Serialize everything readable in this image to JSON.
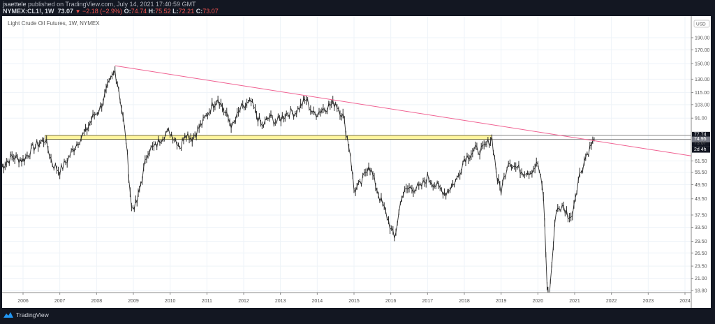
{
  "header": {
    "author": "jsaettele",
    "published_text": "published on TradingView.com, July 14, 2021 17:40:59 GMT",
    "symbol": "NYMEX:CL1!, 1W",
    "last_price": "73.07",
    "change_icon": "down-triangle-icon",
    "change": "−2.18 (−2.9%)",
    "open_label": "O:",
    "open": "74.74",
    "high_label": "H:",
    "high": "75.52",
    "low_label": "L:",
    "low": "72.21",
    "close_label": "C:",
    "close": "73.07"
  },
  "chart": {
    "legend_title": "Light Crude Oil Futures, 1W, NYMEX",
    "currency_label": "USD",
    "price_badges": {
      "upper": "77.74",
      "current": "74.95",
      "hidden": "73.07",
      "countdown": "2d 4h"
    }
  },
  "footer": {
    "brand": "TradingView",
    "brand_icon": "tradingview-cloud-icon"
  },
  "colors": {
    "background_dark": "#131722",
    "plot_background": "#ffffff",
    "trendline": "#f06292",
    "zone_fill": "#fff59d",
    "zone_border": "#7a7346",
    "candles": "#2a2a2a",
    "down_change": "#ef5350",
    "grid": "#eef3f8"
  },
  "chart_data": {
    "type": "line",
    "title": "Light Crude Oil Futures, 1W, NYMEX",
    "xlabel": "",
    "ylabel": "USD",
    "y_scale": "log",
    "ylim": [
      17.5,
      210
    ],
    "grid": true,
    "x_ticks": [
      "2006",
      "2007",
      "2008",
      "2009",
      "2010",
      "2011",
      "2012",
      "2013",
      "2014",
      "2015",
      "2016",
      "2017",
      "2018",
      "2019",
      "2020",
      "2021",
      "2022",
      "2023",
      "2024"
    ],
    "y_ticks": [
      "190.00",
      "170.00",
      "150.00",
      "130.00",
      "115.00",
      "103.00",
      "91.00",
      "77.74",
      "74.95",
      "61.50",
      "55.50",
      "49.50",
      "43.50",
      "37.50",
      "33.50",
      "29.50",
      "26.50",
      "23.50",
      "21.00",
      "18.80"
    ],
    "series": [
      {
        "name": "CL1! weekly close (approx.)",
        "x": [
          2005.4,
          2005.7,
          2006.0,
          2006.3,
          2006.6,
          2006.8,
          2007.0,
          2007.2,
          2007.5,
          2007.7,
          2007.9,
          2008.1,
          2008.3,
          2008.5,
          2008.6,
          2008.8,
          2008.95,
          2009.1,
          2009.2,
          2009.4,
          2009.6,
          2009.8,
          2010.0,
          2010.3,
          2010.4,
          2010.6,
          2010.9,
          2011.1,
          2011.3,
          2011.5,
          2011.7,
          2011.9,
          2012.2,
          2012.5,
          2012.7,
          2012.9,
          2013.2,
          2013.4,
          2013.7,
          2013.9,
          2014.2,
          2014.5,
          2014.7,
          2014.9,
          2015.0,
          2015.2,
          2015.4,
          2015.7,
          2015.9,
          2016.1,
          2016.3,
          2016.5,
          2016.8,
          2017.0,
          2017.3,
          2017.5,
          2017.8,
          2018.0,
          2018.3,
          2018.5,
          2018.75,
          2018.9,
          2019.0,
          2019.2,
          2019.4,
          2019.6,
          2019.8,
          2020.0,
          2020.15,
          2020.25,
          2020.3,
          2020.5,
          2020.7,
          2020.9,
          2021.1,
          2021.3,
          2021.53
        ],
        "values": [
          58,
          64,
          62,
          70,
          75,
          60,
          56,
          62,
          74,
          80,
          92,
          100,
          120,
          140,
          120,
          75,
          40,
          42,
          50,
          68,
          70,
          78,
          80,
          70,
          80,
          76,
          88,
          100,
          110,
          95,
          84,
          98,
          105,
          84,
          92,
          88,
          96,
          96,
          108,
          94,
          100,
          105,
          93,
          66,
          47,
          50,
          60,
          44,
          37,
          30,
          45,
          48,
          48,
          53,
          48,
          46,
          52,
          63,
          68,
          68,
          76,
          52,
          47,
          62,
          58,
          56,
          56,
          60,
          45,
          20,
          17,
          40,
          40,
          36,
          52,
          64,
          75
        ]
      },
      {
        "name": "Descending trendline",
        "x": [
          2008.5,
          2024.0
        ],
        "values": [
          147,
          65
        ]
      },
      {
        "name": "Resistance zone",
        "x": [
          2006.6,
          2018.75
        ],
        "values": [
          74.95,
          77.74
        ]
      }
    ]
  }
}
